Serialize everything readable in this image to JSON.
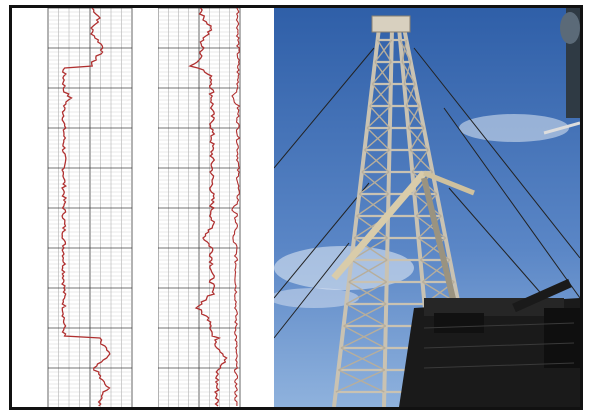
{
  "image": {
    "left_panel": "well-log",
    "right_panel": "drilling-rig-derrick-photo"
  },
  "well_log": {
    "curve_color": "#b03030",
    "grid_color": "#8a8a8a",
    "depth_labels": [
      "",
      "",
      "",
      ""
    ]
  },
  "photo": {
    "sky_top": "#3f6fb7",
    "sky_bottom": "#7fa6d6",
    "derrick_color": "#c9c2b2"
  }
}
